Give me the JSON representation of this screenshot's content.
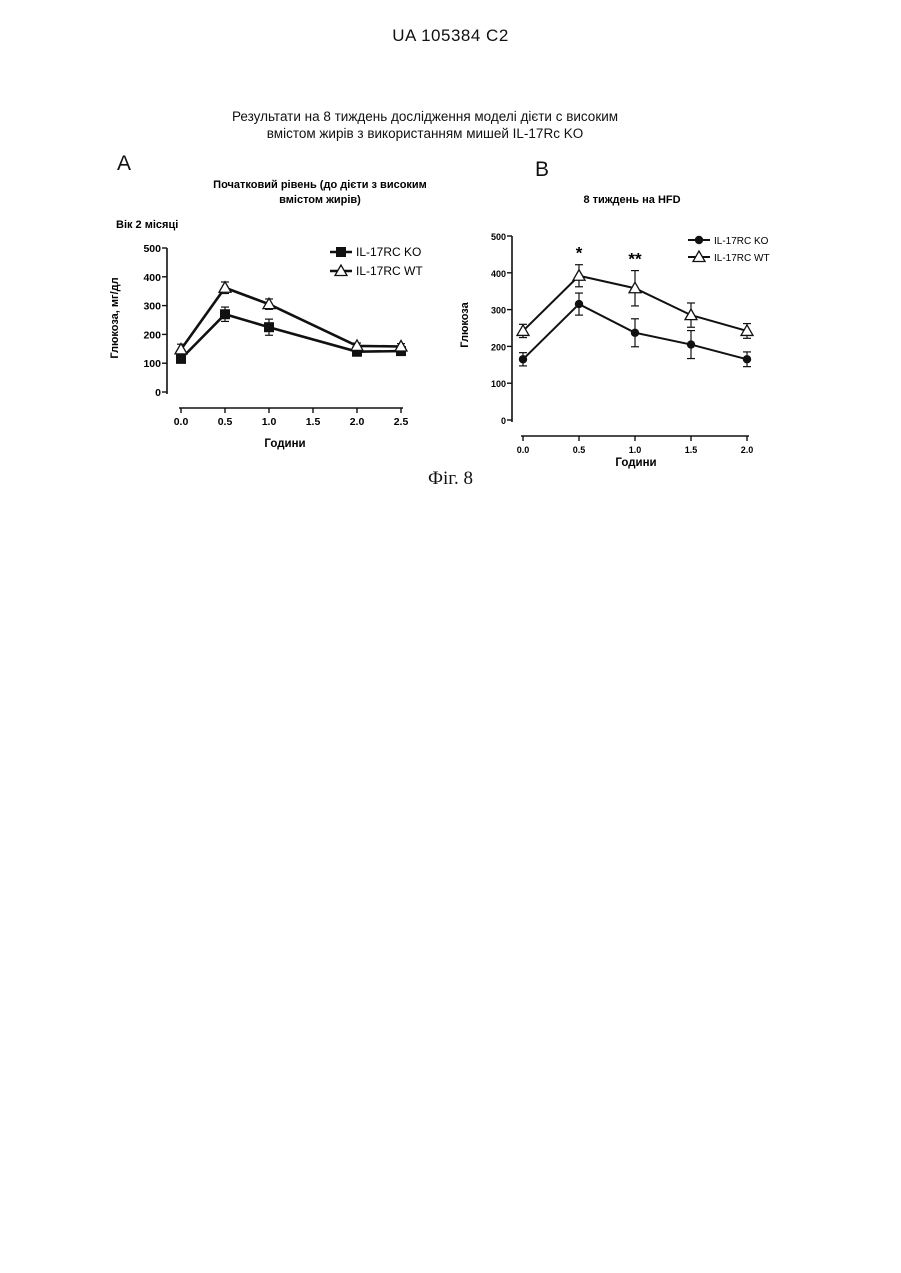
{
  "header": {
    "patent_number": "UA   105384   C2"
  },
  "figure": {
    "title_line1": "Результати на 8 тиждень дослідження моделі дієти с високим",
    "title_line2": "вмістом жирів з використанням мишей IL-17Rc KO",
    "caption": "Фіг. 8"
  },
  "chart_data": [
    {
      "panel": "A",
      "type": "line",
      "title_line1": "Початковий рівень (до дієти з високим",
      "title_line2": "вмістом жирів)",
      "subtitle": "Вік 2 місяці",
      "xlabel": "Години",
      "ylabel": "Глюкоза, мг/дл",
      "xlim": [
        0,
        2.5
      ],
      "ylim": [
        0,
        500
      ],
      "x_ticks": [
        "0.0",
        "0.5",
        "1.0",
        "1.5",
        "2.0",
        "2.5"
      ],
      "y_ticks": [
        "0",
        "100",
        "200",
        "300",
        "400",
        "500"
      ],
      "legend_position": "top-right",
      "grid": false,
      "series": [
        {
          "name": "IL-17RC KO",
          "marker": "filled-square",
          "x": [
            0,
            0.5,
            1.0,
            2.0,
            2.5
          ],
          "y": [
            115,
            270,
            225,
            140,
            142
          ],
          "err": [
            10,
            25,
            28,
            15,
            10
          ]
        },
        {
          "name": "IL-17RC WT",
          "marker": "open-triangle",
          "x": [
            0,
            0.5,
            1.0,
            2.0,
            2.5
          ],
          "y": [
            148,
            362,
            305,
            160,
            158
          ],
          "err": [
            18,
            20,
            18,
            10,
            10
          ]
        }
      ]
    },
    {
      "panel": "B",
      "type": "line",
      "title": "8 тиждень на HFD",
      "xlabel": "Години",
      "ylabel": "Глюкоза",
      "xlim": [
        0,
        2.0
      ],
      "ylim": [
        0,
        500
      ],
      "x_ticks": [
        "0.0",
        "0.5",
        "1.0",
        "1.5",
        "2.0"
      ],
      "y_ticks": [
        "0",
        "100",
        "200",
        "300",
        "400",
        "500"
      ],
      "legend_position": "top-right",
      "grid": false,
      "annotations": [
        {
          "x": 0.5,
          "text": "*"
        },
        {
          "x": 1.0,
          "text": "**"
        }
      ],
      "series": [
        {
          "name": "IL-17RC KO",
          "marker": "filled-circle",
          "x": [
            0,
            0.5,
            1.0,
            1.5,
            2.0
          ],
          "y": [
            165,
            315,
            237,
            205,
            165
          ],
          "err": [
            18,
            30,
            38,
            38,
            20
          ]
        },
        {
          "name": "IL-17RC WT",
          "marker": "open-triangle",
          "x": [
            0,
            0.5,
            1.0,
            1.5,
            2.0
          ],
          "y": [
            242,
            392,
            358,
            285,
            242
          ],
          "err": [
            18,
            30,
            48,
            33,
            20
          ]
        }
      ]
    }
  ]
}
